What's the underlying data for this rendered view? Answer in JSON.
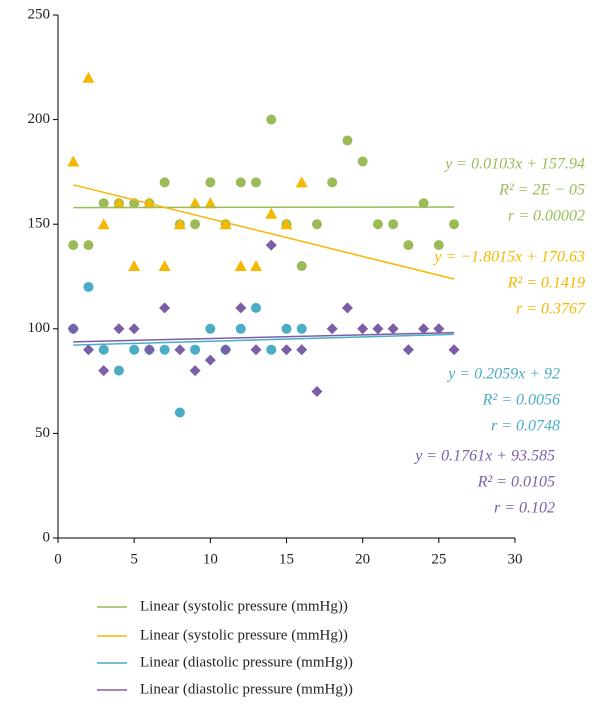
{
  "chart_data": {
    "type": "scatter",
    "xlim": [
      0,
      30
    ],
    "xticks": [
      0,
      5,
      10,
      15,
      20,
      25,
      30
    ],
    "ylim": [
      0,
      250
    ],
    "yticks": [
      0,
      50,
      100,
      150,
      200,
      250
    ],
    "grid": false,
    "series": [
      {
        "color": "#9bbb59",
        "marker": "circle",
        "x": [
          1,
          2,
          3,
          4,
          5,
          6,
          7,
          8,
          9,
          10,
          11,
          12,
          13,
          14,
          15,
          16,
          17,
          18,
          19,
          20,
          21,
          22,
          23,
          24,
          25,
          26
        ],
        "values": [
          140,
          140,
          160,
          160,
          160,
          160,
          170,
          150,
          150,
          170,
          150,
          170,
          170,
          200,
          150,
          130,
          150,
          170,
          190,
          180,
          150,
          150,
          140,
          160,
          140,
          150
        ]
      },
      {
        "color": "#f5b800",
        "marker": "triangle",
        "x": [
          1,
          2,
          3,
          4,
          5,
          6,
          7,
          8,
          9,
          10,
          11,
          12,
          13,
          14,
          15,
          16
        ],
        "values": [
          180,
          220,
          150,
          160,
          130,
          160,
          130,
          150,
          160,
          160,
          150,
          130,
          130,
          155,
          150,
          170
        ]
      },
      {
        "color": "#4bacc6",
        "marker": "circle",
        "x": [
          1,
          2,
          3,
          4,
          5,
          6,
          7,
          8,
          9,
          10,
          11,
          12,
          13,
          14,
          15,
          16
        ],
        "values": [
          100,
          120,
          90,
          80,
          90,
          90,
          90,
          60,
          90,
          100,
          90,
          100,
          110,
          90,
          100,
          100
        ]
      },
      {
        "color": "#7b5ea7",
        "marker": "diamond",
        "x": [
          1,
          2,
          3,
          4,
          5,
          6,
          7,
          8,
          9,
          10,
          11,
          12,
          13,
          14,
          15,
          16,
          17,
          18,
          19,
          20,
          21,
          22,
          23,
          24,
          25,
          26
        ],
        "values": [
          100,
          90,
          80,
          100,
          100,
          90,
          110,
          90,
          80,
          85,
          90,
          110,
          90,
          140,
          90,
          90,
          70,
          100,
          110,
          100,
          100,
          100,
          90,
          100,
          100,
          90
        ]
      }
    ],
    "trendlines": [
      {
        "name": "Linear (systolic pressure (mmHg))",
        "color": "#9bbb59",
        "slope": 0.0103,
        "intercept": 157.94,
        "x_range": [
          1,
          26
        ],
        "labels": [
          "y = 0.0103x + 157.94",
          "R² = 2E − 05",
          "r = 0.00002"
        ]
      },
      {
        "name": "Linear (systolic pressure (mmHg))",
        "color": "#f5b800",
        "slope": -1.8015,
        "intercept": 170.63,
        "x_range": [
          1,
          26
        ],
        "labels": [
          "y = −1.8015x + 170.63",
          "R² = 0.1419",
          "r = 0.3767"
        ]
      },
      {
        "name": "Linear (diastolic pressure (mmHg))",
        "color": "#4bacc6",
        "slope": 0.2059,
        "intercept": 92,
        "x_range": [
          1,
          26
        ],
        "labels": [
          "y = 0.2059x + 92",
          "R² = 0.0056",
          "r = 0.0748"
        ]
      },
      {
        "name": "Linear (diastolic pressure (mmHg))",
        "color": "#7b5ea7",
        "slope": 0.1761,
        "intercept": 93.585,
        "x_range": [
          1,
          26
        ],
        "labels": [
          "y = 0.1761x + 93.585",
          "R² = 0.0105",
          "r = 0.102"
        ]
      }
    ]
  }
}
